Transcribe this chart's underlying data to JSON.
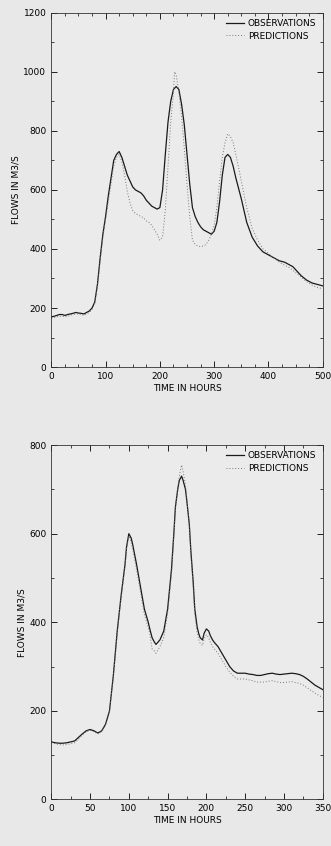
{
  "chart1": {
    "xlabel": "TIME IN HOURS",
    "ylabel": "FLOWS IN M3/S",
    "xlim": [
      0,
      500
    ],
    "ylim": [
      0,
      1200
    ],
    "xticks": [
      0,
      100,
      200,
      300,
      400,
      500
    ],
    "yticks": [
      0,
      200,
      400,
      600,
      800,
      1000,
      1200
    ],
    "x_minor": 25,
    "y_minor": 100,
    "obs": [
      [
        0,
        170
      ],
      [
        5,
        172
      ],
      [
        10,
        175
      ],
      [
        15,
        178
      ],
      [
        20,
        178
      ],
      [
        25,
        175
      ],
      [
        30,
        178
      ],
      [
        35,
        180
      ],
      [
        40,
        182
      ],
      [
        45,
        185
      ],
      [
        50,
        183
      ],
      [
        55,
        182
      ],
      [
        60,
        180
      ],
      [
        65,
        185
      ],
      [
        70,
        190
      ],
      [
        75,
        200
      ],
      [
        80,
        220
      ],
      [
        85,
        280
      ],
      [
        90,
        370
      ],
      [
        95,
        450
      ],
      [
        100,
        510
      ],
      [
        105,
        580
      ],
      [
        110,
        640
      ],
      [
        115,
        700
      ],
      [
        120,
        720
      ],
      [
        125,
        730
      ],
      [
        130,
        710
      ],
      [
        135,
        680
      ],
      [
        140,
        650
      ],
      [
        145,
        630
      ],
      [
        150,
        610
      ],
      [
        155,
        600
      ],
      [
        160,
        595
      ],
      [
        165,
        590
      ],
      [
        170,
        580
      ],
      [
        175,
        565
      ],
      [
        180,
        555
      ],
      [
        185,
        545
      ],
      [
        190,
        540
      ],
      [
        195,
        535
      ],
      [
        200,
        540
      ],
      [
        205,
        600
      ],
      [
        210,
        720
      ],
      [
        215,
        830
      ],
      [
        220,
        900
      ],
      [
        225,
        940
      ],
      [
        230,
        950
      ],
      [
        235,
        940
      ],
      [
        240,
        890
      ],
      [
        245,
        820
      ],
      [
        250,
        720
      ],
      [
        255,
        620
      ],
      [
        260,
        540
      ],
      [
        265,
        510
      ],
      [
        270,
        490
      ],
      [
        275,
        475
      ],
      [
        280,
        465
      ],
      [
        285,
        460
      ],
      [
        290,
        455
      ],
      [
        295,
        450
      ],
      [
        300,
        460
      ],
      [
        305,
        490
      ],
      [
        310,
        560
      ],
      [
        315,
        650
      ],
      [
        320,
        710
      ],
      [
        325,
        720
      ],
      [
        330,
        710
      ],
      [
        335,
        680
      ],
      [
        340,
        640
      ],
      [
        350,
        570
      ],
      [
        360,
        490
      ],
      [
        370,
        440
      ],
      [
        380,
        410
      ],
      [
        390,
        390
      ],
      [
        400,
        380
      ],
      [
        410,
        370
      ],
      [
        420,
        360
      ],
      [
        430,
        355
      ],
      [
        435,
        350
      ],
      [
        440,
        345
      ],
      [
        445,
        340
      ],
      [
        450,
        330
      ],
      [
        460,
        310
      ],
      [
        470,
        295
      ],
      [
        480,
        285
      ],
      [
        490,
        280
      ],
      [
        500,
        275
      ]
    ],
    "pred": [
      [
        0,
        165
      ],
      [
        5,
        168
      ],
      [
        10,
        170
      ],
      [
        15,
        172
      ],
      [
        20,
        172
      ],
      [
        25,
        170
      ],
      [
        30,
        172
      ],
      [
        35,
        175
      ],
      [
        40,
        178
      ],
      [
        45,
        180
      ],
      [
        50,
        180
      ],
      [
        55,
        178
      ],
      [
        60,
        175
      ],
      [
        65,
        180
      ],
      [
        70,
        185
      ],
      [
        75,
        195
      ],
      [
        80,
        215
      ],
      [
        85,
        275
      ],
      [
        90,
        360
      ],
      [
        95,
        440
      ],
      [
        100,
        500
      ],
      [
        105,
        560
      ],
      [
        110,
        620
      ],
      [
        115,
        680
      ],
      [
        120,
        710
      ],
      [
        125,
        720
      ],
      [
        130,
        695
      ],
      [
        135,
        650
      ],
      [
        140,
        595
      ],
      [
        145,
        555
      ],
      [
        150,
        530
      ],
      [
        155,
        520
      ],
      [
        160,
        515
      ],
      [
        165,
        510
      ],
      [
        170,
        505
      ],
      [
        175,
        495
      ],
      [
        180,
        490
      ],
      [
        185,
        480
      ],
      [
        190,
        465
      ],
      [
        195,
        450
      ],
      [
        200,
        430
      ],
      [
        205,
        440
      ],
      [
        210,
        530
      ],
      [
        215,
        680
      ],
      [
        220,
        830
      ],
      [
        225,
        930
      ],
      [
        227,
        1000
      ],
      [
        230,
        990
      ],
      [
        235,
        930
      ],
      [
        240,
        850
      ],
      [
        245,
        740
      ],
      [
        250,
        620
      ],
      [
        255,
        510
      ],
      [
        260,
        430
      ],
      [
        265,
        415
      ],
      [
        270,
        410
      ],
      [
        275,
        408
      ],
      [
        280,
        410
      ],
      [
        285,
        415
      ],
      [
        290,
        430
      ],
      [
        295,
        450
      ],
      [
        300,
        480
      ],
      [
        305,
        540
      ],
      [
        310,
        630
      ],
      [
        315,
        710
      ],
      [
        320,
        760
      ],
      [
        325,
        790
      ],
      [
        330,
        780
      ],
      [
        335,
        760
      ],
      [
        340,
        720
      ],
      [
        350,
        630
      ],
      [
        360,
        540
      ],
      [
        370,
        470
      ],
      [
        380,
        430
      ],
      [
        390,
        400
      ],
      [
        400,
        385
      ],
      [
        410,
        370
      ],
      [
        420,
        355
      ],
      [
        430,
        345
      ],
      [
        440,
        335
      ],
      [
        450,
        320
      ],
      [
        460,
        305
      ],
      [
        470,
        290
      ],
      [
        480,
        278
      ],
      [
        490,
        270
      ],
      [
        500,
        265
      ]
    ],
    "legend_obs": "OBSERVATIONS",
    "legend_pred": "PREDICTIONS"
  },
  "chart2": {
    "xlabel": "TIME IN HOURS",
    "ylabel": "FLOWS IN M3/S",
    "xlim": [
      0,
      350
    ],
    "ylim": [
      0,
      800
    ],
    "xticks": [
      0,
      50,
      100,
      150,
      200,
      250,
      300,
      350
    ],
    "yticks": [
      0,
      200,
      400,
      600,
      800
    ],
    "x_minor": 25,
    "y_minor": 100,
    "obs": [
      [
        0,
        130
      ],
      [
        5,
        128
      ],
      [
        10,
        127
      ],
      [
        15,
        127
      ],
      [
        20,
        128
      ],
      [
        25,
        130
      ],
      [
        30,
        132
      ],
      [
        35,
        140
      ],
      [
        40,
        148
      ],
      [
        45,
        155
      ],
      [
        50,
        158
      ],
      [
        55,
        155
      ],
      [
        60,
        150
      ],
      [
        65,
        155
      ],
      [
        70,
        170
      ],
      [
        75,
        200
      ],
      [
        80,
        280
      ],
      [
        85,
        380
      ],
      [
        90,
        460
      ],
      [
        95,
        530
      ],
      [
        97,
        570
      ],
      [
        100,
        600
      ],
      [
        103,
        590
      ],
      [
        105,
        575
      ],
      [
        110,
        530
      ],
      [
        115,
        480
      ],
      [
        120,
        430
      ],
      [
        125,
        400
      ],
      [
        127,
        385
      ],
      [
        130,
        365
      ],
      [
        133,
        355
      ],
      [
        135,
        350
      ],
      [
        140,
        360
      ],
      [
        145,
        380
      ],
      [
        150,
        430
      ],
      [
        155,
        520
      ],
      [
        158,
        600
      ],
      [
        160,
        660
      ],
      [
        163,
        700
      ],
      [
        165,
        720
      ],
      [
        168,
        730
      ],
      [
        170,
        720
      ],
      [
        173,
        700
      ],
      [
        175,
        670
      ],
      [
        178,
        620
      ],
      [
        180,
        560
      ],
      [
        183,
        490
      ],
      [
        185,
        430
      ],
      [
        188,
        390
      ],
      [
        190,
        375
      ],
      [
        192,
        365
      ],
      [
        195,
        360
      ],
      [
        197,
        375
      ],
      [
        200,
        385
      ],
      [
        203,
        380
      ],
      [
        205,
        370
      ],
      [
        208,
        360
      ],
      [
        210,
        355
      ],
      [
        215,
        345
      ],
      [
        220,
        330
      ],
      [
        225,
        315
      ],
      [
        230,
        300
      ],
      [
        235,
        290
      ],
      [
        240,
        285
      ],
      [
        245,
        285
      ],
      [
        250,
        285
      ],
      [
        255,
        283
      ],
      [
        260,
        282
      ],
      [
        265,
        280
      ],
      [
        270,
        280
      ],
      [
        275,
        282
      ],
      [
        280,
        284
      ],
      [
        285,
        285
      ],
      [
        290,
        283
      ],
      [
        295,
        282
      ],
      [
        300,
        283
      ],
      [
        305,
        284
      ],
      [
        310,
        285
      ],
      [
        315,
        284
      ],
      [
        320,
        282
      ],
      [
        325,
        278
      ],
      [
        330,
        272
      ],
      [
        335,
        265
      ],
      [
        340,
        258
      ],
      [
        350,
        248
      ]
    ],
    "pred": [
      [
        0,
        128
      ],
      [
        5,
        126
      ],
      [
        10,
        124
      ],
      [
        15,
        123
      ],
      [
        20,
        124
      ],
      [
        25,
        126
      ],
      [
        30,
        128
      ],
      [
        35,
        136
      ],
      [
        40,
        145
      ],
      [
        45,
        153
      ],
      [
        50,
        156
      ],
      [
        55,
        153
      ],
      [
        60,
        148
      ],
      [
        65,
        153
      ],
      [
        70,
        168
      ],
      [
        75,
        198
      ],
      [
        80,
        278
      ],
      [
        85,
        375
      ],
      [
        90,
        455
      ],
      [
        95,
        525
      ],
      [
        97,
        565
      ],
      [
        100,
        595
      ],
      [
        103,
        580
      ],
      [
        105,
        565
      ],
      [
        110,
        518
      ],
      [
        115,
        468
      ],
      [
        120,
        418
      ],
      [
        125,
        388
      ],
      [
        127,
        375
      ],
      [
        130,
        340
      ],
      [
        133,
        335
      ],
      [
        135,
        330
      ],
      [
        140,
        345
      ],
      [
        145,
        365
      ],
      [
        150,
        420
      ],
      [
        155,
        510
      ],
      [
        158,
        595
      ],
      [
        160,
        655
      ],
      [
        163,
        700
      ],
      [
        165,
        730
      ],
      [
        168,
        755
      ],
      [
        170,
        740
      ],
      [
        173,
        710
      ],
      [
        175,
        675
      ],
      [
        178,
        618
      ],
      [
        180,
        552
      ],
      [
        183,
        480
      ],
      [
        185,
        418
      ],
      [
        188,
        378
      ],
      [
        190,
        362
      ],
      [
        192,
        352
      ],
      [
        195,
        348
      ],
      [
        197,
        362
      ],
      [
        200,
        372
      ],
      [
        203,
        365
      ],
      [
        205,
        355
      ],
      [
        208,
        345
      ],
      [
        210,
        340
      ],
      [
        215,
        330
      ],
      [
        220,
        315
      ],
      [
        225,
        300
      ],
      [
        230,
        288
      ],
      [
        235,
        278
      ],
      [
        240,
        272
      ],
      [
        245,
        272
      ],
      [
        250,
        272
      ],
      [
        255,
        270
      ],
      [
        260,
        268
      ],
      [
        265,
        265
      ],
      [
        270,
        265
      ],
      [
        275,
        265
      ],
      [
        280,
        267
      ],
      [
        285,
        268
      ],
      [
        290,
        266
      ],
      [
        295,
        264
      ],
      [
        300,
        264
      ],
      [
        305,
        265
      ],
      [
        310,
        266
      ],
      [
        315,
        264
      ],
      [
        320,
        262
      ],
      [
        325,
        258
      ],
      [
        330,
        252
      ],
      [
        335,
        246
      ],
      [
        340,
        240
      ],
      [
        350,
        230
      ]
    ],
    "legend_obs": "OBSERVATIONS",
    "legend_pred": "PREDICTIONS"
  },
  "obs_color": "#1a1a1a",
  "pred_color": "#777777",
  "obs_lw": 0.9,
  "pred_lw": 0.7,
  "obs_ls": "-",
  "pred_ls": ":",
  "pred_dashes": [
    1,
    2
  ],
  "font_size_label": 6.5,
  "font_size_tick": 6.5,
  "font_size_legend": 6.5,
  "bg_color": "#f0f0f0"
}
